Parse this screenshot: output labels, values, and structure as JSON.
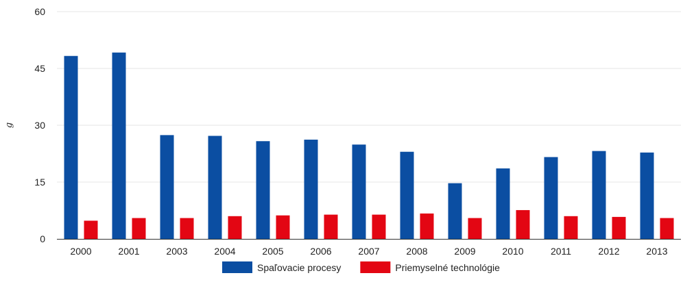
{
  "chart_data": {
    "type": "bar",
    "title": "",
    "xlabel": "",
    "ylabel": "g",
    "ylim": [
      0,
      60
    ],
    "yticks": [
      0,
      15,
      30,
      45,
      60
    ],
    "grid": true,
    "legend_position": "bottom",
    "categories": [
      "2000",
      "2001",
      "2003",
      "2004",
      "2005",
      "2006",
      "2007",
      "2008",
      "2009",
      "2010",
      "2011",
      "2012",
      "2013"
    ],
    "series": [
      {
        "name": "Spaľovacie procesy",
        "color": "#0b4ea2",
        "values": [
          48.3,
          49.2,
          27.4,
          27.2,
          25.8,
          26.2,
          24.9,
          23.0,
          14.7,
          18.6,
          21.6,
          23.2,
          22.8
        ]
      },
      {
        "name": "Priemyselné technológie",
        "color": "#e30613",
        "values": [
          4.8,
          5.5,
          5.5,
          6.0,
          6.2,
          6.4,
          6.4,
          6.7,
          5.5,
          7.6,
          6.0,
          5.8,
          5.5
        ]
      }
    ]
  }
}
